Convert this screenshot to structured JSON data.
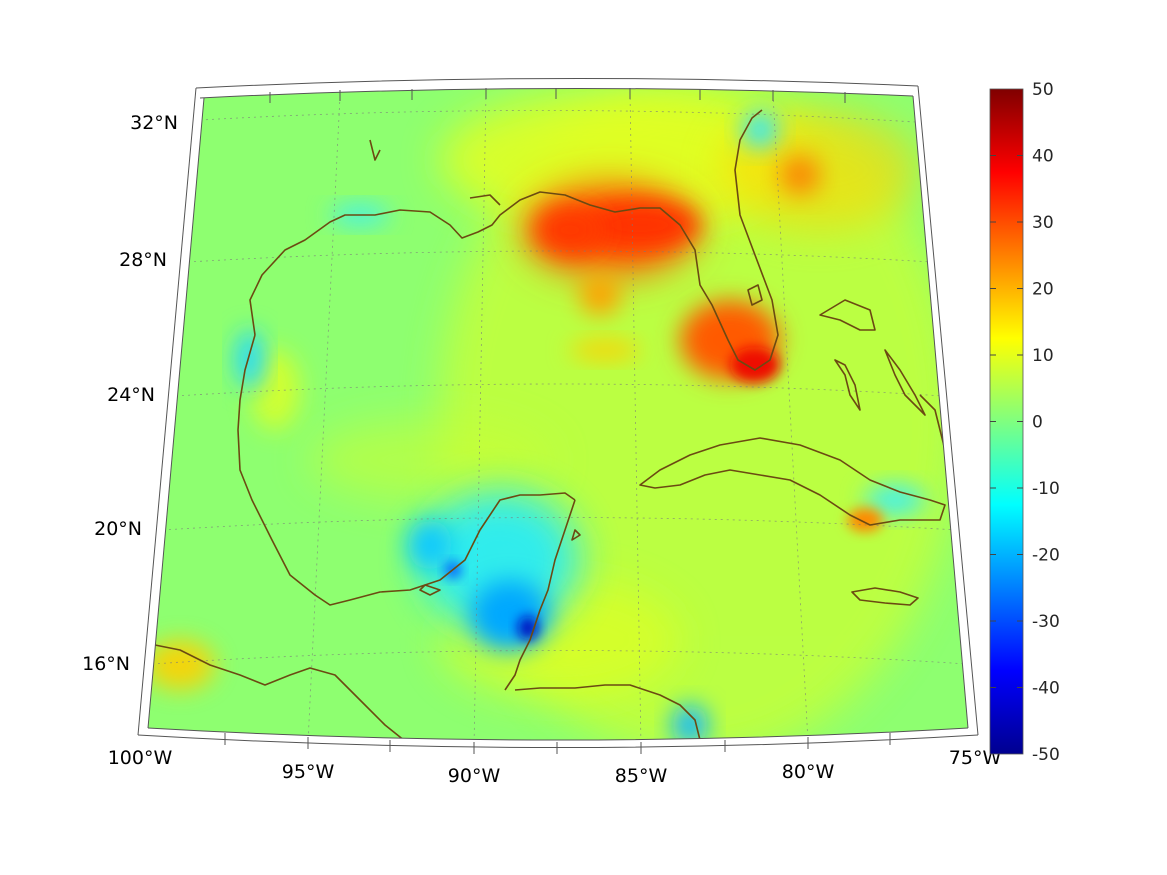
{
  "map": {
    "longitude_labels": [
      "100°W",
      "95°W",
      "90°W",
      "85°W",
      "80°W",
      "75°W"
    ],
    "latitude_labels": [
      "16°N",
      "20°N",
      "24°N",
      "28°N",
      "32°N"
    ],
    "extent": {
      "lon_min": -100,
      "lon_max": -75,
      "lat_min": 14,
      "lat_max": 33
    },
    "projection": "conic",
    "coastline_color": "#6b4a12",
    "grid": true
  },
  "colorbar": {
    "colormap": "jet",
    "min": -50,
    "max": 50,
    "tick_labels": [
      "50",
      "40",
      "30",
      "20",
      "10",
      "0",
      "-10",
      "-20",
      "-30",
      "-40",
      "-50"
    ]
  },
  "features": {
    "hotspots": [
      {
        "region": "Florida panhandle / Big Bend",
        "approx_value": 32
      },
      {
        "region": "Southwest Florida",
        "approx_value": 30
      },
      {
        "region": "Eastern Cuba",
        "approx_value": 20
      },
      {
        "region": "Georgia",
        "approx_value": 20
      }
    ],
    "coldspots": [
      {
        "region": "Belize coast",
        "approx_value": -45
      },
      {
        "region": "Campeche coast",
        "approx_value": -35
      },
      {
        "region": "Western Yucatan",
        "approx_value": -18
      }
    ],
    "background_value": 3
  }
}
